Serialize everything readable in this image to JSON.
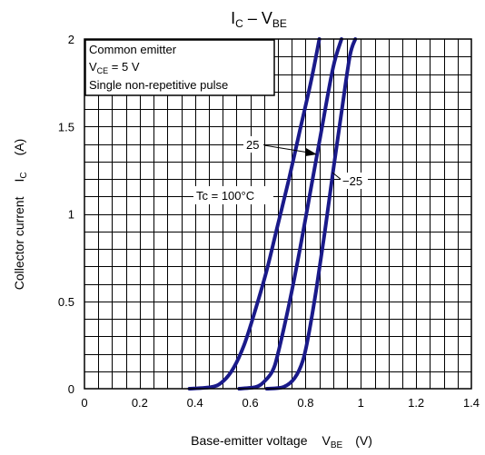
{
  "chart_data": {
    "type": "line",
    "title": {
      "main": "I",
      "sub1": "C",
      "dash": " – V",
      "sub2": "BE"
    },
    "xlabel": {
      "text": "Base-emitter voltage",
      "sym": "V",
      "sub": "BE",
      "unit": "(V)"
    },
    "ylabel": {
      "text": "Collector current",
      "sym": "I",
      "sub": "C",
      "unit": "(A)"
    },
    "xlim": [
      0,
      1.4
    ],
    "ylim": [
      0,
      2
    ],
    "x_ticks": [
      "0",
      "0.2",
      "0.4",
      "0.6",
      "0.8",
      "1",
      "1.2",
      "1.4"
    ],
    "x_tick_values": [
      0,
      0.2,
      0.4,
      0.6,
      0.8,
      1.0,
      1.2,
      1.4
    ],
    "y_ticks": [
      "0",
      "0.5",
      "1",
      "1.5",
      "2"
    ],
    "y_tick_values": [
      0,
      0.5,
      1.0,
      1.5,
      2.0
    ],
    "grid": true,
    "conditions": {
      "line1": "Common emitter",
      "line2_sym": "V",
      "line2_sub": "CE",
      "line2_rest": " = 5 V",
      "line3": "Single non-repetitive pulse"
    },
    "series": [
      {
        "name": "Tc = 100°C",
        "x": [
          0.38,
          0.46,
          0.5,
          0.54,
          0.58,
          0.62,
          0.66,
          0.7,
          0.74,
          0.78,
          0.82,
          0.85
        ],
        "y": [
          0.0,
          0.01,
          0.04,
          0.12,
          0.26,
          0.46,
          0.68,
          0.94,
          1.2,
          1.48,
          1.76,
          2.0
        ]
      },
      {
        "name": "25",
        "x": [
          0.56,
          0.62,
          0.65,
          0.68,
          0.7,
          0.74,
          0.78,
          0.82,
          0.86,
          0.9,
          0.93
        ],
        "y": [
          0.0,
          0.01,
          0.04,
          0.1,
          0.2,
          0.48,
          0.8,
          1.15,
          1.5,
          1.84,
          2.0
        ]
      },
      {
        "name": "−25",
        "x": [
          0.66,
          0.72,
          0.76,
          0.79,
          0.81,
          0.84,
          0.87,
          0.9,
          0.93,
          0.96,
          0.98
        ],
        "y": [
          0.0,
          0.01,
          0.06,
          0.16,
          0.3,
          0.58,
          0.9,
          1.25,
          1.58,
          1.9,
          2.0
        ]
      }
    ],
    "annotations": [
      "Tc = 100°C",
      "25",
      "−25"
    ]
  }
}
